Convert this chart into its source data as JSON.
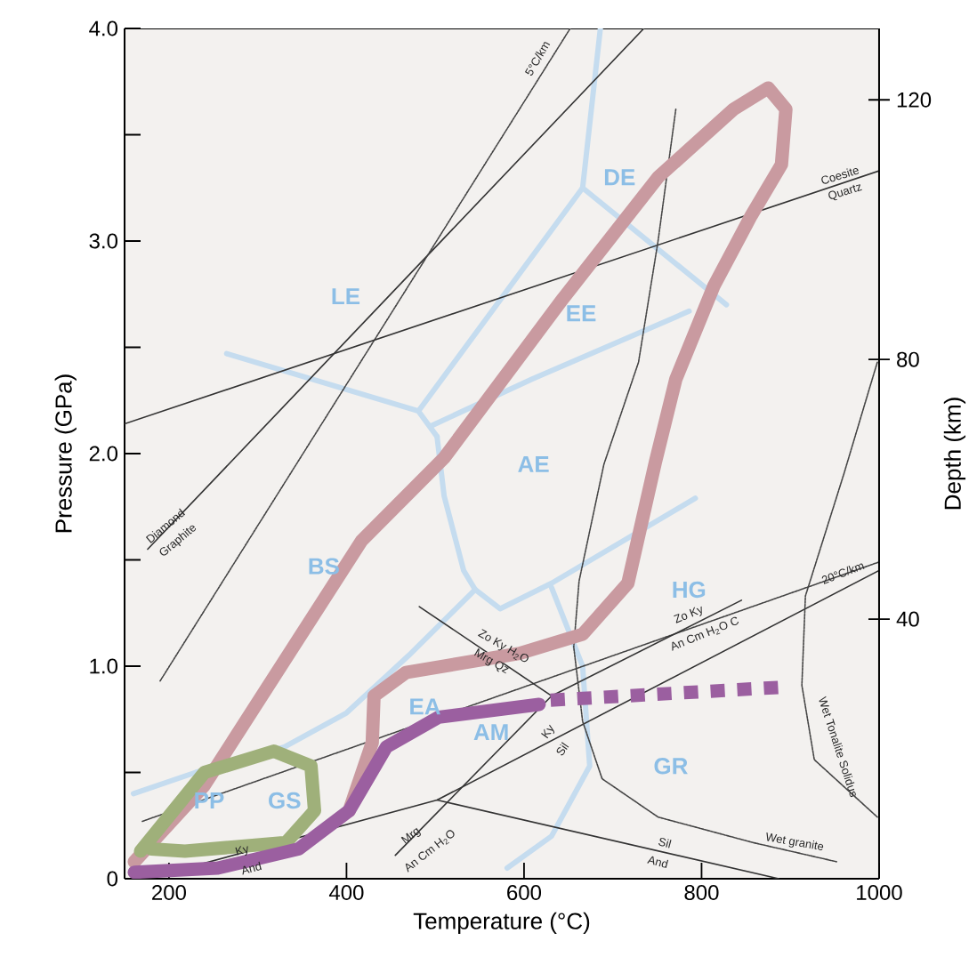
{
  "chart_data": {
    "type": "line",
    "xlabel": "Temperature (°C)",
    "ylabel": "Pressure (GPa)",
    "y2label": "Depth (km)",
    "xlim": [
      150,
      1000
    ],
    "ylim": [
      0,
      4
    ],
    "y2lim": [
      0,
      131
    ],
    "xticks": [
      200,
      400,
      600,
      800,
      1000
    ],
    "yticks": [
      0,
      {
        "value": 0.5,
        "label": null
      },
      {
        "value": 1,
        "label": "1.0"
      },
      {
        "value": 1.5,
        "label": null
      },
      {
        "value": 2,
        "label": "2.0"
      },
      {
        "value": 2.5,
        "label": null
      },
      {
        "value": 3,
        "label": "3.0"
      },
      {
        "value": 3.5,
        "label": null
      },
      {
        "value": 4,
        "label": "4.0"
      }
    ],
    "y2ticks": [
      40,
      80,
      120
    ],
    "marker": "none",
    "grid": false,
    "series": [
      {
        "color": "#c99aa0",
        "x": [
          161,
          240,
          340,
          417,
          510,
          644,
          751,
          836,
          875,
          895,
          890,
          856,
          814,
          771,
          748,
          717,
          666,
          595,
          467,
          431,
          429,
          403
        ],
        "values": [
          0.08,
          0.44,
          1.09,
          1.59,
          1.98,
          2.73,
          3.3,
          3.62,
          3.72,
          3.62,
          3.36,
          3.12,
          2.79,
          2.35,
          1.96,
          1.39,
          1.15,
          1.06,
          0.97,
          0.86,
          0.64,
          0.32
        ]
      },
      {
        "color": "#9fb07a",
        "x": [
          168,
          240,
          318,
          360,
          364,
          332,
          218,
          180
        ],
        "values": [
          0.13,
          0.5,
          0.6,
          0.53,
          0.32,
          0.17,
          0.13,
          0.14
        ]
      },
      {
        "color": "#9b5fa0",
        "x": [
          161,
          255,
          346,
          403,
          445,
          504,
          617
        ],
        "values": [
          0.03,
          0.05,
          0.14,
          0.32,
          0.62,
          0.76,
          0.82
        ]
      },
      {
        "color": "#9b5fa0",
        "line_style": "dashed",
        "x": [
          630,
          887
        ],
        "values": [
          0.84,
          0.9
        ]
      },
      {
        "color": "#333333",
        "x": [
          176,
          735
        ],
        "values": [
          1.55,
          4.0
        ]
      },
      {
        "color": "#444444",
        "line_style": "dotted",
        "x": [
          190,
          652
        ],
        "values": [
          0.93,
          4.0
        ]
      },
      {
        "color": "#333333",
        "x": [
          150,
          1000
        ],
        "values": [
          2.14,
          3.33
        ]
      },
      {
        "color": "#444444",
        "line_style": "dotted",
        "x": [
          170,
          1000
        ],
        "values": [
          0.27,
          1.49
        ]
      },
      {
        "color": "#333333",
        "x": [
          184,
          502,
          1000
        ],
        "values": [
          0.01,
          0.37,
          1.45
        ]
      },
      {
        "color": "#333333",
        "x": [
          502,
          887
        ],
        "values": [
          0.37,
          0
        ]
      },
      {
        "color": "#333333",
        "x": [
          455,
          631,
          845
        ],
        "values": [
          0.11,
          0.86,
          1.31
        ]
      },
      {
        "color": "#333333",
        "x": [
          482,
          631
        ],
        "values": [
          1.28,
          0.86
        ]
      },
      {
        "color": "#444444",
        "line_style": "dotted",
        "x": [
          771,
          751,
          729,
          690,
          662,
          656,
          666,
          688,
          751,
          858,
          952
        ],
        "values": [
          3.62,
          3.0,
          2.43,
          1.95,
          1.4,
          1.09,
          0.74,
          0.47,
          0.29,
          0.17,
          0.08
        ]
      },
      {
        "color": "#444444",
        "line_style": "dotted",
        "x": [
          998,
          960,
          917,
          913,
          927,
          998
        ],
        "values": [
          2.43,
          1.9,
          1.33,
          0.91,
          0.56,
          0.29
        ]
      },
      {
        "color": "#c5dcef",
        "x": [
          265,
          481,
          502
        ],
        "values": [
          2.47,
          2.2,
          2.08
        ]
      },
      {
        "color": "#c5dcef",
        "x": [
          481,
          666,
          686
        ],
        "values": [
          2.2,
          3.25,
          4.0
        ]
      },
      {
        "color": "#c5dcef",
        "x": [
          666,
          828
        ],
        "values": [
          3.25,
          2.7
        ]
      },
      {
        "color": "#c5dcef",
        "x": [
          495,
          609,
          786
        ],
        "values": [
          2.13,
          2.35,
          2.67
        ]
      },
      {
        "color": "#c5dcef",
        "x": [
          502,
          510,
          532,
          545,
          573,
          631,
          793
        ],
        "values": [
          2.08,
          1.8,
          1.45,
          1.36,
          1.27,
          1.39,
          1.79
        ]
      },
      {
        "color": "#c5dcef",
        "x": [
          545,
          470,
          400,
          330,
          230,
          160
        ],
        "values": [
          1.36,
          1.05,
          0.78,
          0.62,
          0.5,
          0.4
        ]
      },
      {
        "color": "#c5dcef",
        "x": [
          631,
          666,
          674,
          631,
          581
        ],
        "values": [
          1.37,
          1.0,
          0.53,
          0.2,
          0.05
        ]
      }
    ],
    "annotations": [
      "LE",
      "DE",
      "EE",
      "AE",
      "BS",
      "HG",
      "EA",
      "AM",
      "GR",
      "PP",
      "GS",
      "5°C/km",
      "Coesite",
      "Quartz",
      "Diamond",
      "Graphite",
      "20°C/km",
      "Zo Ky H$_{2}$O",
      "Mrg Qz",
      "Zo Ky",
      "An Cm H$_{2}$O C",
      "Ky",
      "Sil",
      "Sil",
      "And",
      "Mrg",
      "An Cm H$_{2}$O",
      "Ky",
      "And",
      "Wet granite",
      "Wet Tonalite Solidus"
    ]
  }
}
